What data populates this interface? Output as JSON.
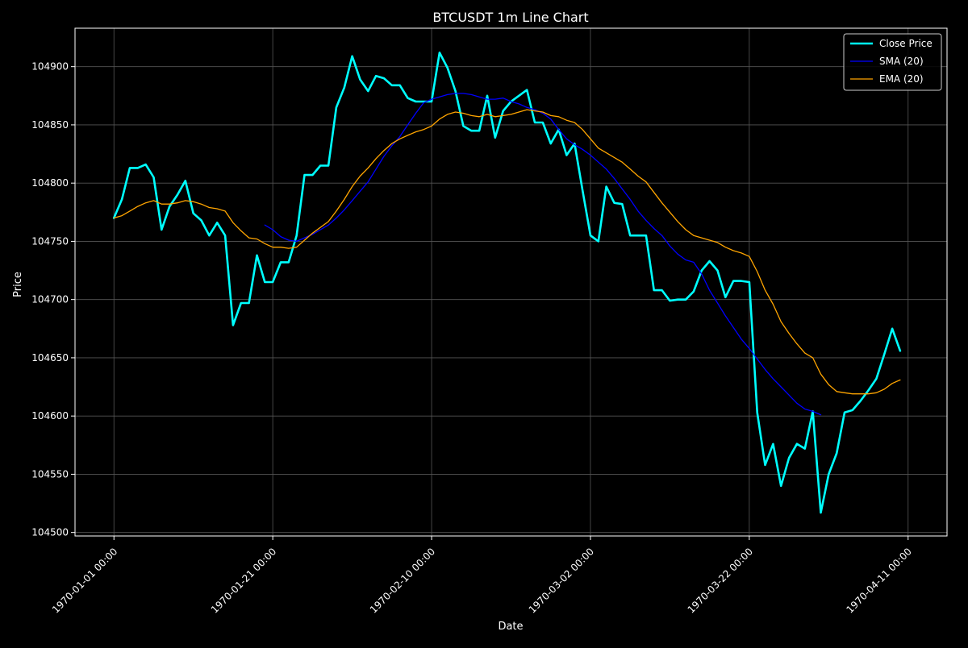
{
  "chart_data": {
    "type": "line",
    "title": "BTCUSDT 1m Line Chart",
    "xlabel": "Date",
    "ylabel": "Price",
    "xlim": [
      -4.9,
      104.9
    ],
    "ylim": [
      104497,
      104933
    ],
    "x_ticks": [
      {
        "value": 0,
        "label": "1970-01-01 00:00"
      },
      {
        "value": 20,
        "label": "1970-01-21 00:00"
      },
      {
        "value": 40,
        "label": "1970-02-10 00:00"
      },
      {
        "value": 60,
        "label": "1970-03-02 00:00"
      },
      {
        "value": 80,
        "label": "1970-03-22 00:00"
      },
      {
        "value": 100,
        "label": "1970-04-11 00:00"
      }
    ],
    "y_ticks": [
      104500,
      104550,
      104600,
      104650,
      104700,
      104750,
      104800,
      104850,
      104900
    ],
    "grid": true,
    "legend_position": "upper right",
    "series": [
      {
        "name": "Close Price",
        "color": "#00ffff",
        "x_start": 0,
        "values": [
          104770,
          104786,
          104813,
          104813,
          104816,
          104805,
          104760,
          104780,
          104790,
          104802,
          104774,
          104768,
          104755,
          104766,
          104755,
          104678,
          104697,
          104697,
          104738,
          104715,
          104715,
          104732,
          104732,
          104755,
          104807,
          104807,
          104815,
          104815,
          104865,
          104882,
          104909,
          104889,
          104879,
          104892,
          104890,
          104884,
          104884,
          104873,
          104870,
          104870,
          104870,
          104912,
          104899,
          104879,
          104849,
          104845,
          104845,
          104875,
          104839,
          104862,
          104870,
          104875,
          104880,
          104852,
          104852,
          104834,
          104846,
          104824,
          104834,
          104794,
          104755,
          104750,
          104797,
          104783,
          104782,
          104755,
          104755,
          104755,
          104708,
          104708,
          104699,
          104700,
          104700,
          104707,
          104725,
          104733,
          104725,
          104702,
          104716,
          104716,
          104715,
          104603,
          104558,
          104576,
          104540,
          104564,
          104576,
          104572,
          104604,
          104517,
          104550,
          104568,
          104603,
          104605,
          104613,
          104622,
          104632,
          104653,
          104675,
          104656
        ]
      },
      {
        "name": "SMA (20)",
        "color": "#0000ff",
        "x_start": 19,
        "values": [
          104764,
          104760,
          104754,
          104751,
          104750,
          104753,
          104756,
          104760,
          104764,
          104770,
          104777,
          104785,
          104793,
          104801,
          104812,
          104823,
          104832,
          104840,
          104850,
          104860,
          104869,
          104872,
          104874,
          104876,
          104877,
          104877,
          104876,
          104874,
          104872,
          104872,
          104873,
          104870,
          104868,
          104865,
          104863,
          104860,
          104855,
          104846,
          104838,
          104833,
          104829,
          104824,
          104818,
          104812,
          104804,
          104795,
          104786,
          104776,
          104768,
          104761,
          104755,
          104746,
          104739,
          104734,
          104732,
          104722,
          104708,
          104697,
          104686,
          104676,
          104666,
          104658,
          104649,
          104640,
          104632,
          104625,
          104618,
          104611,
          104606,
          104604,
          104601
        ]
      },
      {
        "name": "EMA (20)",
        "color": "#ffa500",
        "x_start": 0,
        "values": [
          104770,
          104772,
          104776,
          104780,
          104783,
          104785,
          104782,
          104782,
          104783,
          104785,
          104784,
          104782,
          104779,
          104778,
          104776,
          104766,
          104759,
          104753,
          104752,
          104748,
          104745,
          104745,
          104744,
          104745,
          104751,
          104757,
          104762,
          104767,
          104776,
          104786,
          104797,
          104806,
          104813,
          104821,
          104828,
          104834,
          104838,
          104841,
          104844,
          104846,
          104849,
          104855,
          104859,
          104861,
          104860,
          104858,
          104857,
          104859,
          104857,
          104858,
          104859,
          104861,
          104863,
          104862,
          104861,
          104858,
          104857,
          104854,
          104852,
          104846,
          104838,
          104830,
          104826,
          104822,
          104818,
          104812,
          104806,
          104801,
          104792,
          104783,
          104775,
          104767,
          104760,
          104755,
          104753,
          104751,
          104749,
          104745,
          104742,
          104740,
          104737,
          104724,
          104708,
          104696,
          104681,
          104671,
          104662,
          104654,
          104650,
          104636,
          104627,
          104621,
          104620,
          104619,
          104619,
          104619,
          104620,
          104623,
          104628,
          104631
        ]
      }
    ]
  }
}
